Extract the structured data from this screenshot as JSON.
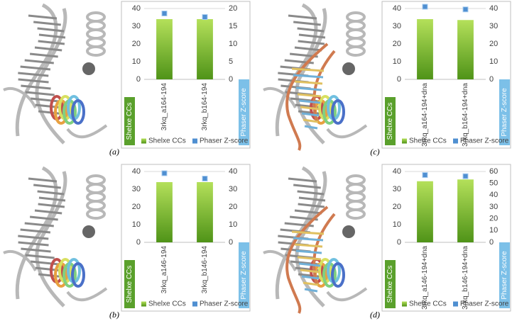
{
  "chart_data": [
    {
      "type": "bar",
      "panel_label": "(a)",
      "ylabel": "Shelxe CCs",
      "y2label": "Phaser Z-score",
      "categories": [
        "3rkq_a164-194",
        "3rkq_b164-194"
      ],
      "series": [
        {
          "name": "Shelxe CCs",
          "color": "#7cc23c",
          "values": [
            34,
            34
          ]
        },
        {
          "name": "Phaser Z-score",
          "color": "#4f8fd1",
          "values": [
            18.6,
            17.6
          ],
          "axis": "y2"
        }
      ],
      "ylim": [
        0,
        40
      ],
      "yticks": [
        0,
        10,
        20,
        30,
        40
      ],
      "y2lim": [
        0,
        20
      ],
      "y2ticks": [
        0,
        5,
        10,
        15,
        20
      ]
    },
    {
      "type": "bar",
      "panel_label": "(b)",
      "ylabel": "Shelxe CCs",
      "y2label": "Phaser Z-score",
      "categories": [
        "3rkq_a146-194",
        "3rkq_b146-194"
      ],
      "series": [
        {
          "name": "Shelxe CCs",
          "color": "#7cc23c",
          "values": [
            34,
            34
          ]
        },
        {
          "name": "Phaser Z-score",
          "color": "#4f8fd1",
          "values": [
            39,
            36
          ],
          "axis": "y2"
        }
      ],
      "ylim": [
        0,
        40
      ],
      "yticks": [
        0,
        10,
        20,
        30,
        40
      ],
      "y2lim": [
        0,
        40
      ],
      "y2ticks": [
        0,
        10,
        20,
        30,
        40
      ]
    },
    {
      "type": "bar",
      "panel_label": "(c)",
      "ylabel": "Shelxe CCs",
      "y2label": "Phaser Z-score",
      "categories": [
        "3rkq_a164-194+dna",
        "3rkq_b164-194+dna"
      ],
      "series": [
        {
          "name": "Shelxe CCs",
          "color": "#7cc23c",
          "values": [
            34,
            33.5
          ]
        },
        {
          "name": "Phaser Z-score",
          "color": "#4f8fd1",
          "values": [
            41,
            39.5
          ],
          "axis": "y2"
        }
      ],
      "ylim": [
        0,
        40
      ],
      "yticks": [
        0,
        10,
        20,
        30,
        40
      ],
      "y2lim": [
        0,
        40
      ],
      "y2ticks": [
        0,
        10,
        20,
        30,
        40
      ]
    },
    {
      "type": "bar",
      "panel_label": "(d)",
      "ylabel": "Shelxe CCs",
      "y2label": "Phaser Z-score",
      "categories": [
        "3rkq_a146-194+dna",
        "3rkq_b146-194+dna"
      ],
      "series": [
        {
          "name": "Shelxe CCs",
          "color": "#7cc23c",
          "values": [
            34.5,
            35.5
          ]
        },
        {
          "name": "Phaser Z-score",
          "color": "#4f8fd1",
          "values": [
            57,
            56
          ],
          "axis": "y2"
        }
      ],
      "ylim": [
        0,
        40
      ],
      "yticks": [
        0,
        10,
        20,
        30,
        40
      ],
      "y2lim": [
        0,
        60
      ],
      "y2ticks": [
        0,
        10,
        20,
        30,
        40,
        50,
        60
      ]
    }
  ]
}
